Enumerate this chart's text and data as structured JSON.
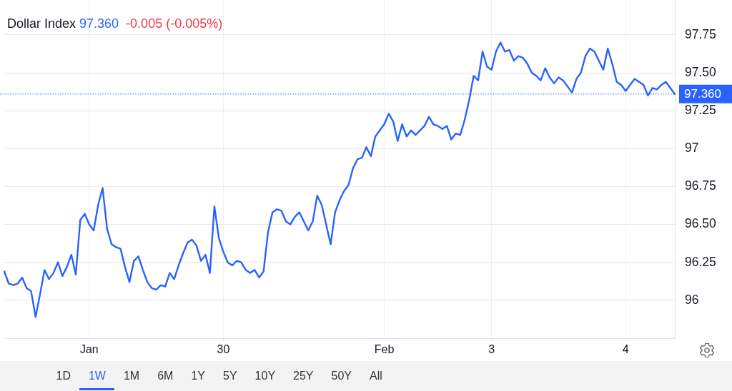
{
  "chart_data": {
    "type": "line",
    "title": "Dollar Index",
    "subtitle": "-0.005 (-0.005%)",
    "categories": [
      null,
      null,
      null,
      null,
      null,
      null,
      null,
      null,
      null,
      null,
      null,
      null,
      null,
      null,
      null,
      null,
      null,
      null,
      null,
      "Jan",
      null,
      null,
      null,
      null,
      null,
      null,
      null,
      null,
      null,
      null,
      null,
      null,
      null,
      null,
      null,
      null,
      null,
      null,
      null,
      null,
      null,
      null,
      null,
      null,
      null,
      null,
      null,
      null,
      null,
      "30",
      null,
      null,
      null,
      null,
      null,
      null,
      null,
      null,
      null,
      null,
      null,
      null,
      null,
      null,
      null,
      null,
      null,
      null,
      null,
      null,
      null,
      null,
      null,
      null,
      null,
      null,
      null,
      null,
      null,
      null,
      null,
      null,
      null,
      null,
      null,
      "Feb",
      null,
      null,
      null,
      null,
      null,
      null,
      null,
      null,
      null,
      null,
      null,
      null,
      null,
      null,
      null,
      null,
      null,
      null,
      null,
      null,
      null,
      null,
      null,
      "3",
      null,
      null,
      null,
      null,
      null,
      null,
      null,
      null,
      null,
      null,
      null,
      null,
      null,
      null,
      null,
      null,
      null,
      null,
      null,
      null,
      null,
      null,
      null,
      null,
      null,
      null,
      null,
      null,
      null,
      "4",
      null,
      null,
      null,
      null,
      null,
      null,
      null,
      null,
      null,
      null,
      null
    ],
    "values": [
      96.19,
      96.11,
      96.1,
      96.11,
      96.15,
      96.08,
      96.06,
      95.89,
      96.04,
      96.2,
      96.14,
      96.18,
      96.25,
      96.16,
      96.22,
      96.3,
      96.17,
      96.53,
      96.57,
      96.5,
      96.46,
      96.63,
      96.74,
      96.47,
      96.37,
      96.35,
      96.34,
      96.22,
      96.12,
      96.26,
      96.29,
      96.2,
      96.12,
      96.08,
      96.07,
      96.1,
      96.09,
      96.18,
      96.14,
      96.23,
      96.31,
      96.38,
      96.4,
      96.36,
      96.26,
      96.3,
      96.18,
      96.62,
      96.41,
      96.32,
      96.25,
      96.23,
      96.26,
      96.25,
      96.2,
      96.18,
      96.2,
      96.15,
      96.19,
      96.45,
      96.58,
      96.6,
      96.59,
      96.52,
      96.5,
      96.55,
      96.58,
      96.52,
      96.46,
      96.52,
      96.69,
      96.63,
      96.5,
      96.37,
      96.58,
      96.66,
      96.72,
      96.76,
      96.87,
      96.93,
      96.94,
      97.01,
      96.95,
      97.08,
      97.12,
      97.16,
      97.23,
      97.18,
      97.05,
      97.16,
      97.08,
      97.12,
      97.09,
      97.12,
      97.15,
      97.21,
      97.16,
      97.15,
      97.13,
      97.15,
      97.06,
      97.1,
      97.09,
      97.19,
      97.32,
      97.48,
      97.45,
      97.64,
      97.54,
      97.52,
      97.64,
      97.7,
      97.64,
      97.65,
      97.58,
      97.61,
      97.6,
      97.56,
      97.5,
      97.48,
      97.45,
      97.53,
      97.47,
      97.43,
      97.47,
      97.45,
      97.41,
      97.37,
      97.46,
      97.5,
      97.61,
      97.66,
      97.64,
      97.58,
      97.52,
      97.66,
      97.56,
      97.44,
      97.42,
      97.38,
      97.42,
      97.46,
      97.44,
      97.42,
      97.35,
      97.4,
      97.39,
      97.42,
      97.44,
      97.4,
      97.36
    ],
    "color": "#2962ff",
    "line_style": "solid",
    "ylim": [
      95.75,
      97.98
    ],
    "yticks": [
      96,
      96.25,
      {
        "value": 96.5,
        "label": "96.50"
      },
      96.75,
      97,
      97.25,
      {
        "value": 97.5,
        "label": "97.50"
      },
      97.75
    ],
    "grid": true,
    "ref_lines": [
      {
        "axis": "y",
        "value": 97.36,
        "label": "97.360",
        "color": "#2962ff",
        "line_style": "dotted"
      }
    ],
    "annotations": [
      "1D",
      "1W",
      "1M",
      "6M",
      "1Y",
      "5Y",
      "10Y",
      "25Y",
      "50Y",
      "All"
    ]
  }
}
